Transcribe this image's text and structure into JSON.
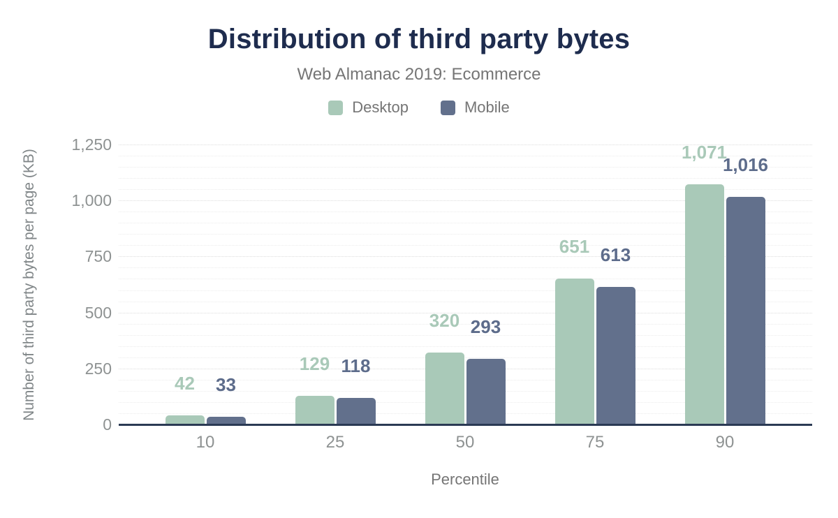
{
  "header": {
    "title": "Distribution of third party bytes",
    "subtitle": "Web Almanac 2019: Ecommerce"
  },
  "legend": {
    "items": [
      {
        "label": "Desktop",
        "color": "#a9c9b8"
      },
      {
        "label": "Mobile",
        "color": "#62708c"
      }
    ]
  },
  "chart_data": {
    "type": "bar",
    "title": "Distribution of third party bytes",
    "subtitle": "Web Almanac 2019: Ecommerce",
    "categories": [
      "10",
      "25",
      "50",
      "75",
      "90"
    ],
    "series": [
      {
        "name": "Desktop",
        "color": "#a9c9b8",
        "label_color": "#a9c9b8",
        "values": [
          42,
          129,
          320,
          651,
          1071
        ],
        "value_labels": [
          "42",
          "129",
          "320",
          "651",
          "1,071"
        ]
      },
      {
        "name": "Mobile",
        "color": "#62708c",
        "label_color": "#5d6c8b",
        "values": [
          33,
          118,
          293,
          613,
          1016
        ],
        "value_labels": [
          "33",
          "118",
          "293",
          "613",
          "1,016"
        ]
      }
    ],
    "xlabel": "Percentile",
    "ylabel": "Number of third party bytes per page (KB)",
    "ylim": [
      0,
      1250
    ],
    "yticks": [
      {
        "value": 0,
        "label": "0"
      },
      {
        "value": 250,
        "label": "250"
      },
      {
        "value": 500,
        "label": "500"
      },
      {
        "value": 750,
        "label": "750"
      },
      {
        "value": 1000,
        "label": "1,000"
      },
      {
        "value": 1250,
        "label": "1,250"
      }
    ],
    "minor_grid_step": 50,
    "major_grid_step": 250,
    "grid": "horizontal-dotted",
    "legend_position": "top"
  },
  "colors": {
    "background": "#ffffff",
    "title": "#1e2c4e",
    "subtitle": "#757575",
    "tick_label": "#8e9292",
    "axis_line": "#2b3a54",
    "grid_major": "#dcdcdc",
    "grid_minor": "#ececec"
  }
}
